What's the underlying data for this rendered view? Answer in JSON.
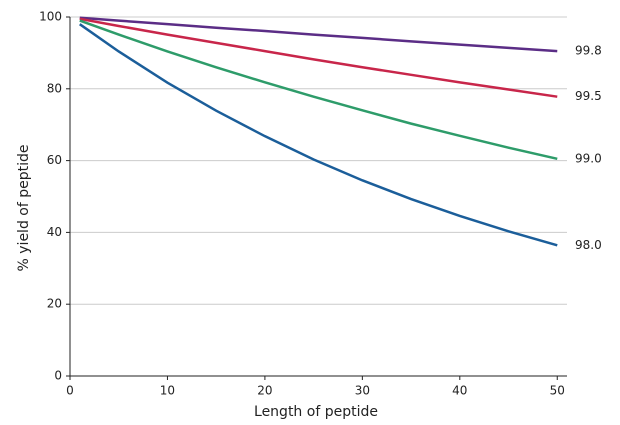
{
  "chart_data": {
    "type": "line",
    "x_label": "Length of peptide",
    "y_label": "% yield of peptide",
    "x": [
      1,
      5,
      10,
      15,
      20,
      25,
      30,
      35,
      40,
      45,
      50
    ],
    "series": [
      {
        "name": "99.8",
        "color": "#5b2d86",
        "values": [
          99.8,
          99.0,
          98.0,
          97.0,
          96.1,
          95.1,
          94.2,
          93.2,
          92.3,
          91.4,
          90.5
        ]
      },
      {
        "name": "99.5",
        "color": "#c8264a",
        "values": [
          99.5,
          97.5,
          95.1,
          92.8,
          90.5,
          88.2,
          86.0,
          83.9,
          81.8,
          79.8,
          77.8
        ]
      },
      {
        "name": "99.0",
        "color": "#2e9c6a",
        "values": [
          99.0,
          95.1,
          90.4,
          86.0,
          81.8,
          77.8,
          74.0,
          70.3,
          66.9,
          63.6,
          60.5
        ]
      },
      {
        "name": "98.0",
        "color": "#1b5e9a",
        "values": [
          98.0,
          90.4,
          81.7,
          73.9,
          66.8,
          60.3,
          54.5,
          49.3,
          44.6,
          40.3,
          36.4
        ]
      }
    ],
    "xlim": [
      0,
      51
    ],
    "xticks": [
      0,
      10,
      20,
      30,
      40,
      50
    ],
    "ylim": [
      0,
      100
    ],
    "yticks": [
      0,
      20,
      40,
      60,
      80,
      100
    ],
    "grid": true
  }
}
